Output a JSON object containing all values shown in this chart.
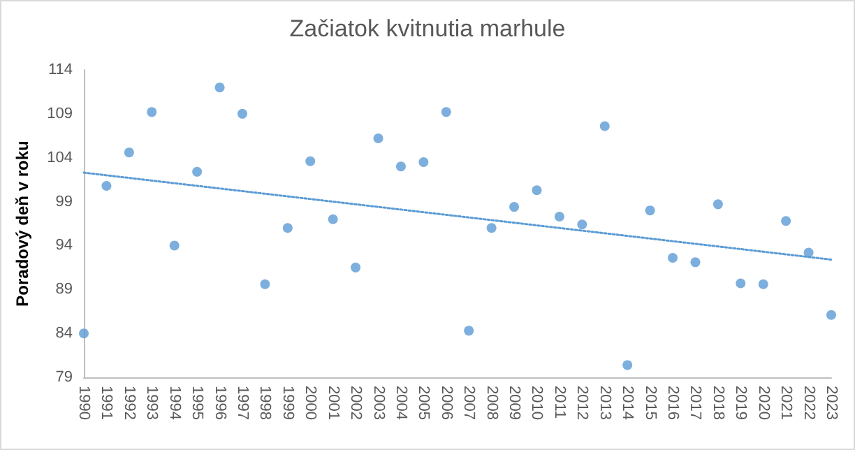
{
  "chart_data": {
    "type": "scatter",
    "title": "Začiatok kvitnutia marhule",
    "ylabel": "Poradový deň v roku",
    "categories": [
      "1990",
      "1991",
      "1992",
      "1993",
      "1994",
      "1995",
      "1996",
      "1997",
      "1998",
      "1999",
      "2000",
      "2001",
      "2002",
      "2003",
      "2004",
      "2005",
      "2006",
      "2007",
      "2008",
      "2009",
      "2010",
      "2011",
      "2012",
      "2013",
      "2014",
      "2015",
      "2016",
      "2017",
      "2018",
      "2019",
      "2020",
      "2021",
      "2022",
      "2023"
    ],
    "series": [
      {
        "color": "#5b9bd5",
        "marker": "circle",
        "values": [
          84.0,
          100.8,
          104.6,
          109.2,
          94.0,
          102.4,
          112.0,
          109.0,
          89.6,
          96.0,
          103.6,
          97.0,
          91.5,
          106.2,
          103.0,
          103.5,
          109.2,
          84.3,
          96.0,
          98.4,
          100.3,
          97.3,
          96.4,
          107.6,
          80.4,
          98.0,
          92.6,
          92.1,
          98.7,
          89.7,
          89.6,
          96.8,
          93.2,
          86.1
        ]
      },
      {
        "type": "line",
        "color": "#5b9bd5",
        "line_style": "dotted",
        "marker": "none",
        "values": [
          102.3,
          null,
          null,
          null,
          null,
          null,
          null,
          null,
          null,
          null,
          null,
          null,
          null,
          null,
          null,
          null,
          null,
          null,
          null,
          null,
          null,
          null,
          null,
          null,
          null,
          null,
          null,
          null,
          null,
          null,
          null,
          null,
          null,
          92.4
        ]
      }
    ],
    "ylim": [
      79,
      114
    ],
    "yticks": [
      79,
      84,
      89,
      94,
      99,
      104,
      109,
      114
    ],
    "grid": false
  }
}
